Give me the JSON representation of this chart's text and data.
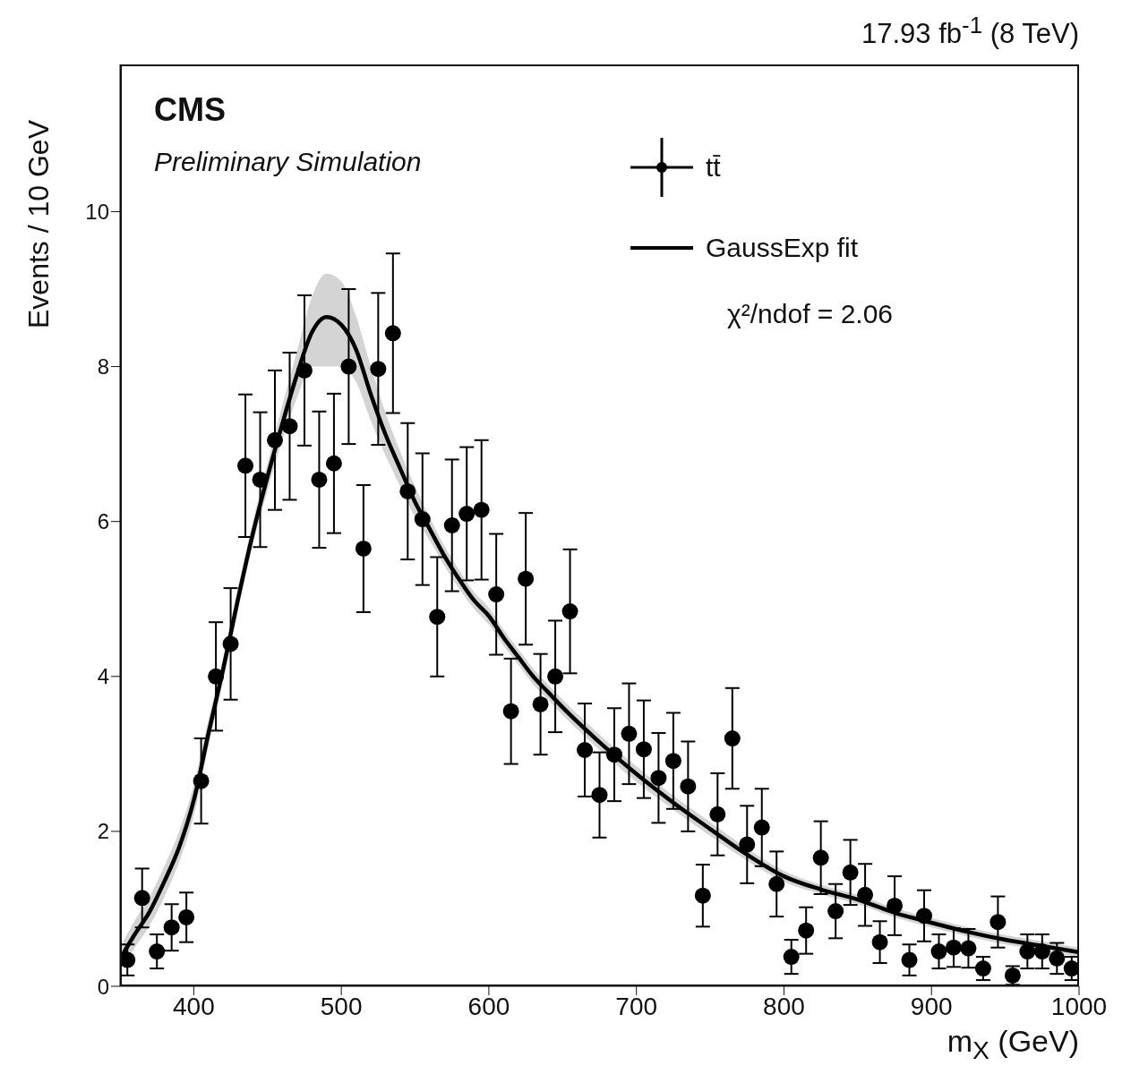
{
  "chart_data": {
    "type": "scatter",
    "xlabel": "m$_{X}$ (GeV)",
    "ylabel": "Events / 10 GeV",
    "annotations": [
      "17.93 fb$^{-1}$ (8 TeV)",
      "CMS",
      "Preliminary Simulation",
      "χ²/ndof = 2.06"
    ],
    "xlim": [
      350,
      1000
    ],
    "xticks": [
      400,
      500,
      600,
      700,
      800,
      900,
      1000
    ],
    "ylim": [
      0,
      11.9
    ],
    "yticks": [
      0,
      2,
      4,
      6,
      8,
      10
    ],
    "legend": "top right",
    "series": [
      {
        "name": "tt̄",
        "marker": "circle",
        "color": "#000000",
        "x": [
          355,
          365,
          375,
          385,
          395,
          405,
          415,
          425,
          435,
          445,
          455,
          465,
          475,
          485,
          495,
          505,
          515,
          525,
          535,
          545,
          555,
          565,
          575,
          585,
          595,
          605,
          615,
          625,
          635,
          645,
          655,
          665,
          675,
          685,
          695,
          705,
          715,
          725,
          735,
          745,
          755,
          765,
          775,
          785,
          795,
          805,
          815,
          825,
          835,
          845,
          855,
          865,
          875,
          885,
          895,
          905,
          915,
          925,
          935,
          945,
          955,
          965,
          975,
          985,
          995
        ],
        "values": [
          0.34,
          1.14,
          0.45,
          0.76,
          0.89,
          2.65,
          4.0,
          4.42,
          6.72,
          6.54,
          7.05,
          7.23,
          7.95,
          6.54,
          6.75,
          8.0,
          5.65,
          7.97,
          8.43,
          6.39,
          6.03,
          4.77,
          5.95,
          6.1,
          6.15,
          5.06,
          3.55,
          5.26,
          3.64,
          4.0,
          4.84,
          3.05,
          2.47,
          2.99,
          3.26,
          3.06,
          2.69,
          2.91,
          2.58,
          1.17,
          2.22,
          3.2,
          1.83,
          2.05,
          1.32,
          0.38,
          0.72,
          1.66,
          0.97,
          1.47,
          1.18,
          0.57,
          1.04,
          0.34,
          0.91,
          0.45,
          0.5,
          0.49,
          0.23,
          0.83,
          0.14,
          0.45,
          0.45,
          0.36,
          0.23
        ],
        "errors": [
          0.2,
          0.38,
          0.22,
          0.3,
          0.32,
          0.55,
          0.7,
          0.72,
          0.92,
          0.87,
          0.9,
          0.95,
          0.97,
          0.88,
          0.9,
          1.0,
          0.82,
          0.98,
          1.03,
          0.88,
          0.85,
          0.77,
          0.85,
          0.86,
          0.9,
          0.78,
          0.68,
          0.85,
          0.65,
          0.72,
          0.8,
          0.6,
          0.55,
          0.6,
          0.65,
          0.63,
          0.58,
          0.62,
          0.58,
          0.4,
          0.53,
          0.65,
          0.5,
          0.5,
          0.42,
          0.22,
          0.3,
          0.47,
          0.35,
          0.42,
          0.4,
          0.27,
          0.38,
          0.2,
          0.33,
          0.22,
          0.25,
          0.25,
          0.15,
          0.33,
          0.12,
          0.22,
          0.22,
          0.2,
          0.15
        ]
      },
      {
        "name": "GaussExp fit",
        "type": "line",
        "color": "#000000",
        "line_style": "solid",
        "x": [
          350,
          360,
          370,
          380,
          390,
          400,
          410,
          420,
          430,
          440,
          450,
          460,
          470,
          480,
          490,
          500,
          510,
          520,
          530,
          540,
          550,
          560,
          570,
          580,
          590,
          600,
          610,
          620,
          630,
          640,
          650,
          675,
          700,
          725,
          750,
          775,
          800,
          825,
          850,
          875,
          900,
          925,
          950,
          975,
          1000
        ],
        "values": [
          0.35,
          0.67,
          0.96,
          1.35,
          1.79,
          2.4,
          3.27,
          4.1,
          5.0,
          5.84,
          6.58,
          7.26,
          7.9,
          8.44,
          8.64,
          8.54,
          8.22,
          7.64,
          7.12,
          6.68,
          6.25,
          5.9,
          5.55,
          5.25,
          4.98,
          4.78,
          4.5,
          4.25,
          4.0,
          3.8,
          3.6,
          3.15,
          2.74,
          2.37,
          2.03,
          1.7,
          1.42,
          1.25,
          1.12,
          0.95,
          0.82,
          0.7,
          0.6,
          0.52,
          0.44
        ],
        "lower": [
          0.2,
          0.5,
          0.78,
          1.15,
          1.6,
          2.2,
          3.1,
          3.95,
          4.85,
          5.7,
          6.4,
          7.05,
          7.6,
          8.0,
          8.0,
          8.0,
          7.8,
          7.3,
          6.85,
          6.45,
          6.05,
          5.75,
          5.42,
          5.13,
          4.87,
          4.67,
          4.4,
          4.15,
          3.9,
          3.7,
          3.5,
          3.05,
          2.64,
          2.28,
          1.94,
          1.62,
          1.35,
          1.19,
          1.06,
          0.89,
          0.76,
          0.64,
          0.54,
          0.46,
          0.38
        ],
        "upper": [
          0.5,
          0.85,
          1.15,
          1.55,
          2.0,
          2.6,
          3.45,
          4.25,
          5.15,
          6.0,
          6.75,
          7.5,
          8.2,
          8.9,
          9.2,
          9.1,
          8.65,
          8.0,
          7.4,
          6.9,
          6.45,
          6.05,
          5.68,
          5.37,
          5.09,
          4.89,
          4.6,
          4.35,
          4.1,
          3.9,
          3.7,
          3.25,
          2.84,
          2.46,
          2.12,
          1.78,
          1.49,
          1.31,
          1.18,
          1.01,
          0.88,
          0.76,
          0.66,
          0.58,
          0.5
        ]
      }
    ]
  }
}
